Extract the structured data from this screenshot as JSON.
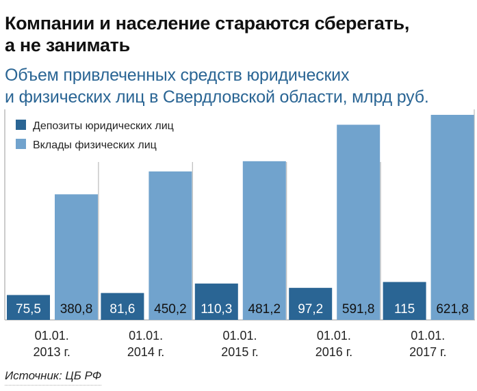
{
  "chart_data": {
    "type": "bar",
    "title": "Компании и население стараются сберегать, а не занимать",
    "title_lines": [
      "Компании и население стараются сберегать,",
      "а не занимать"
    ],
    "subtitle_lines": [
      "Объем привлеченных средств юридических",
      "и физических лиц в Свердловской области, млрд руб."
    ],
    "categories": [
      [
        "01.01.",
        "2013 г."
      ],
      [
        "01.01.",
        "2014 г."
      ],
      [
        "01.01.",
        "2015 г."
      ],
      [
        "01.01.",
        "2016 г."
      ],
      [
        "01.01.",
        "2017 г."
      ]
    ],
    "series": [
      {
        "name": "Депозиты юридических лиц",
        "color": "#2a6594",
        "label_color": "#ffffff",
        "values": [
          75.5,
          81.6,
          110.3,
          97.2,
          115
        ],
        "labels": [
          "75,5",
          "81,6",
          "110,3",
          "97,2",
          "115"
        ]
      },
      {
        "name": "Вклады физических лиц",
        "color": "#71a3cd",
        "label_color": "#111111",
        "values": [
          380.8,
          450.2,
          481.2,
          591.8,
          621.8
        ],
        "labels": [
          "380,8",
          "450,2",
          "481,2",
          "591,8",
          "621,8"
        ]
      }
    ],
    "ylim": [
      0,
      625
    ],
    "legend": "top-left",
    "grid": false
  },
  "source": "Источник: ЦБ РФ"
}
